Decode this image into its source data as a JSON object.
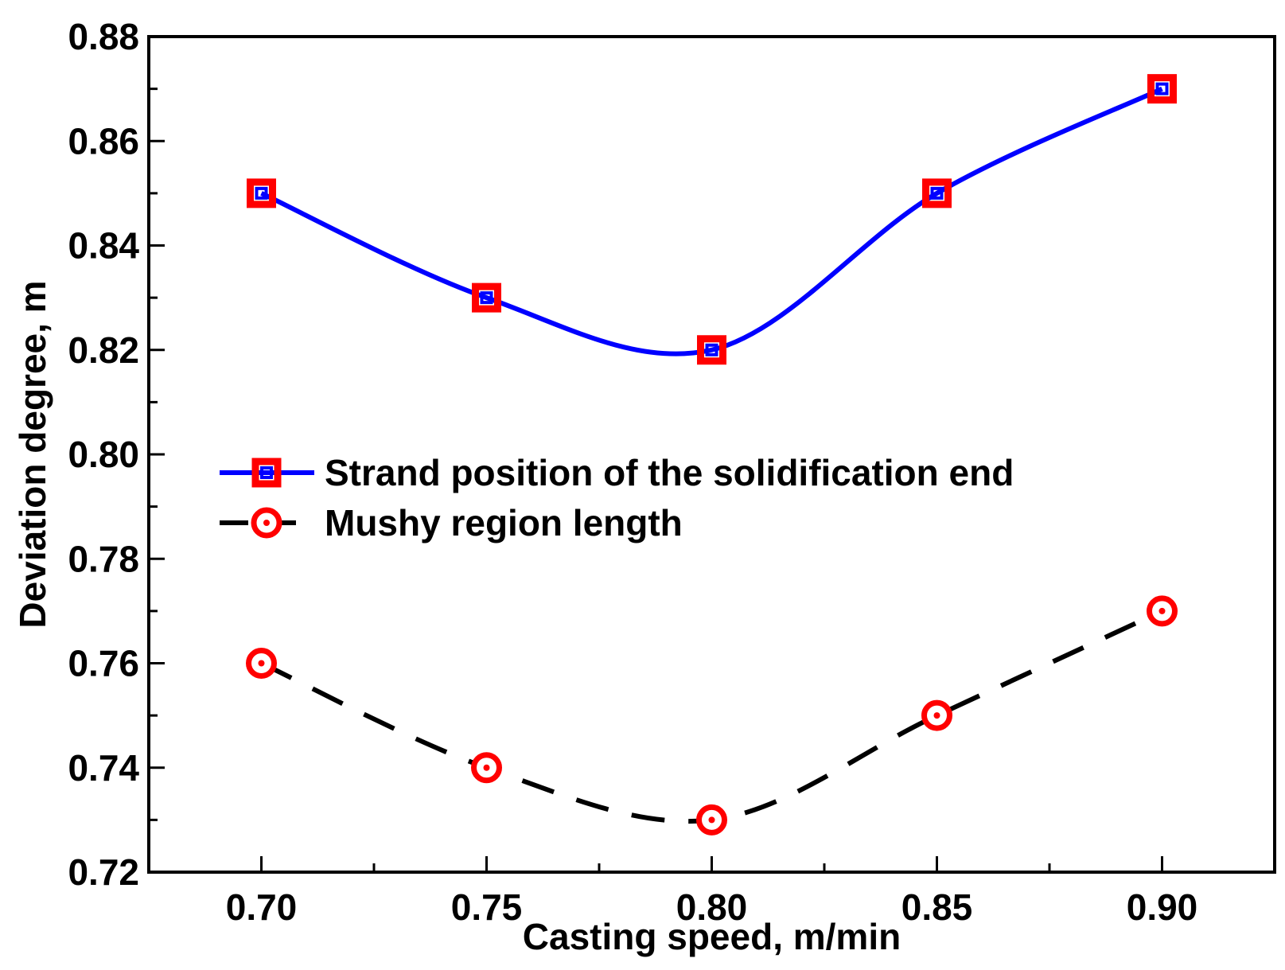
{
  "chart_data": {
    "type": "line",
    "title": "",
    "xlabel": "Casting speed, m/min",
    "ylabel": "Deviation degree, m",
    "xlim": [
      0.675,
      0.925
    ],
    "ylim": [
      0.72,
      0.88
    ],
    "x": [
      0.7,
      0.75,
      0.8,
      0.85,
      0.9
    ],
    "x_tick_labels": [
      "0.70",
      "0.75",
      "0.80",
      "0.85",
      "0.90"
    ],
    "y_ticks": [
      0.72,
      0.74,
      0.76,
      0.78,
      0.8,
      0.82,
      0.84,
      0.86,
      0.88
    ],
    "y_tick_labels": [
      "0.72",
      "0.74",
      "0.76",
      "0.78",
      "0.80",
      "0.82",
      "0.84",
      "0.86",
      "0.88"
    ],
    "grid": false,
    "legend_position": "middle-left",
    "series": [
      {
        "name": "Strand position of the solidification end",
        "values": [
          0.85,
          0.83,
          0.82,
          0.85,
          0.87
        ],
        "line_color": "#0000ff",
        "line_style": "solid",
        "marker": "square",
        "marker_color": "#ff0000",
        "marker_inner_color": "#0000ff"
      },
      {
        "name": "Mushy region length",
        "values": [
          0.76,
          0.74,
          0.73,
          0.75,
          0.77
        ],
        "line_color": "#000000",
        "line_style": "dashed",
        "marker": "circle",
        "marker_color": "#ff0000",
        "marker_inner_color": "#ff0000"
      }
    ]
  }
}
